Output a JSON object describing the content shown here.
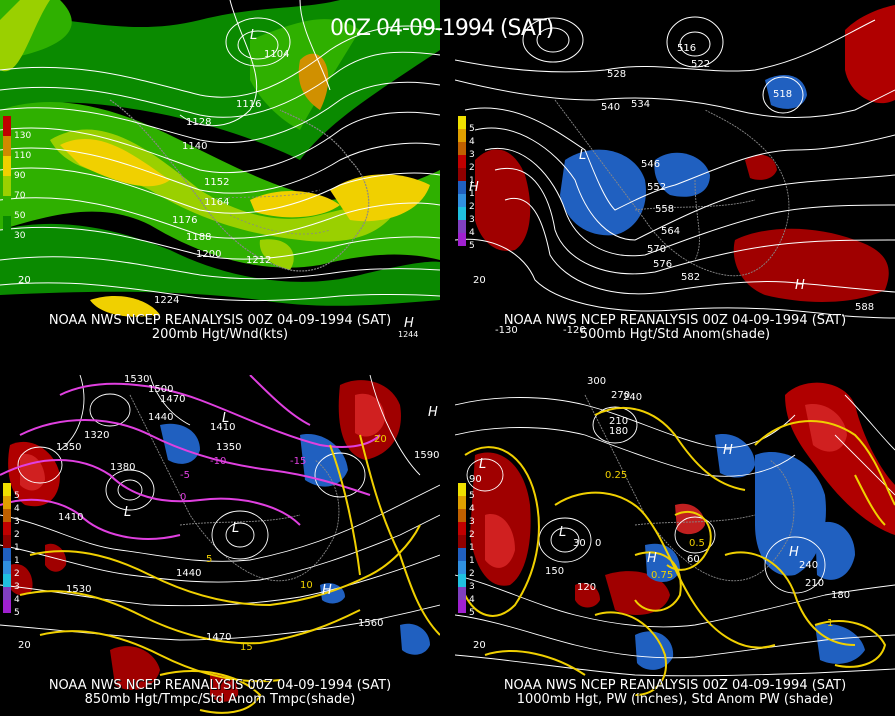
{
  "header": {
    "title": "00Z 04-09-1994 (SAT)"
  },
  "panels": [
    {
      "id": "p200",
      "title_line1": "NOAA NWS NCEP REANALYSIS 00Z 04-09-1994 (SAT)",
      "title_line2": "200mb Hgt/Wnd(kts)",
      "legend": [
        {
          "label": "130",
          "color": "#c00000"
        },
        {
          "label": "110",
          "color": "#d08a00"
        },
        {
          "label": "90",
          "color": "#f0d000"
        },
        {
          "label": "70",
          "color": "#9ad000"
        },
        {
          "label": "50",
          "color": "#2fb000"
        },
        {
          "label": "30",
          "color": "#0a8a00"
        }
      ],
      "contour_labels": [
        "1104",
        "1116",
        "1128",
        "1140",
        "1152",
        "1164",
        "1176",
        "1188",
        "1200",
        "1212",
        "1224"
      ],
      "extra_labels": [
        "20",
        "1244"
      ]
    },
    {
      "id": "p500",
      "title_line1": "NOAA NWS NCEP REANALYSIS 00Z 04-09-1994 (SAT)",
      "title_line2": "500mb Hgt/Std Anom(shade)",
      "legend": [
        {
          "label": "5",
          "color": "#f0e000"
        },
        {
          "label": "4",
          "color": "#e0a000"
        },
        {
          "label": "3",
          "color": "#c06000"
        },
        {
          "label": "2",
          "color": "#c00000"
        },
        {
          "label": "1",
          "color": "#900000"
        },
        {
          "label": "1",
          "color": "#2060c0"
        },
        {
          "label": "2",
          "color": "#3090e0"
        },
        {
          "label": "3",
          "color": "#20c0e0"
        },
        {
          "label": "4",
          "color": "#8040c0"
        },
        {
          "label": "5",
          "color": "#a020d0"
        }
      ],
      "contour_labels": [
        "528",
        "540",
        "534",
        "546",
        "552",
        "558",
        "564",
        "570",
        "576",
        "582",
        "588",
        "516",
        "522",
        "518"
      ],
      "extra_labels": [
        "20",
        "-120",
        "-130"
      ]
    },
    {
      "id": "p850",
      "title_line1": "NOAA NWS NCEP REANALYSIS 00Z 04-09-1994 (SAT)",
      "title_line2": "850mb Hgt/Tmpc/Std Anom Tmpc(shade)",
      "legend": [
        {
          "label": "5",
          "color": "#f0e000"
        },
        {
          "label": "4",
          "color": "#e0a000"
        },
        {
          "label": "3",
          "color": "#c06000"
        },
        {
          "label": "2",
          "color": "#c00000"
        },
        {
          "label": "1",
          "color": "#900000"
        },
        {
          "label": "1",
          "color": "#2060c0"
        },
        {
          "label": "2",
          "color": "#3090e0"
        },
        {
          "label": "3",
          "color": "#20c0e0"
        },
        {
          "label": "4",
          "color": "#8040c0"
        },
        {
          "label": "5",
          "color": "#a020d0"
        }
      ],
      "contour_labels": [
        "1530",
        "1500",
        "1470",
        "1440",
        "1410",
        "1380",
        "1350",
        "1320",
        "1590",
        "1560",
        "1530",
        "1470",
        "1440",
        "1410",
        "1350"
      ],
      "temp_labels": [
        "-15",
        "-10",
        "-5",
        "0",
        "5",
        "10",
        "15",
        "20"
      ],
      "extra_labels": [
        "20"
      ]
    },
    {
      "id": "p1000",
      "title_line1": "NOAA NWS NCEP REANALYSIS 00Z 04-09-1994 (SAT)",
      "title_line2": "1000mb Hgt, PW (inches), Std Anom PW (shade)",
      "legend": [
        {
          "label": "5",
          "color": "#f0e000"
        },
        {
          "label": "4",
          "color": "#e0a000"
        },
        {
          "label": "3",
          "color": "#c06000"
        },
        {
          "label": "2",
          "color": "#c00000"
        },
        {
          "label": "1",
          "color": "#900000"
        },
        {
          "label": "1",
          "color": "#2060c0"
        },
        {
          "label": "2",
          "color": "#3090e0"
        },
        {
          "label": "3",
          "color": "#20c0e0"
        },
        {
          "label": "4",
          "color": "#8040c0"
        },
        {
          "label": "5",
          "color": "#a020d0"
        }
      ],
      "contour_labels": [
        "300",
        "270",
        "240",
        "210",
        "180",
        "150",
        "120",
        "90",
        "60",
        "30",
        "0",
        "240",
        "210",
        "180"
      ],
      "pw_labels": [
        "0.25",
        "0.5",
        "0.75",
        "1"
      ],
      "extra_labels": [
        "20"
      ]
    }
  ]
}
